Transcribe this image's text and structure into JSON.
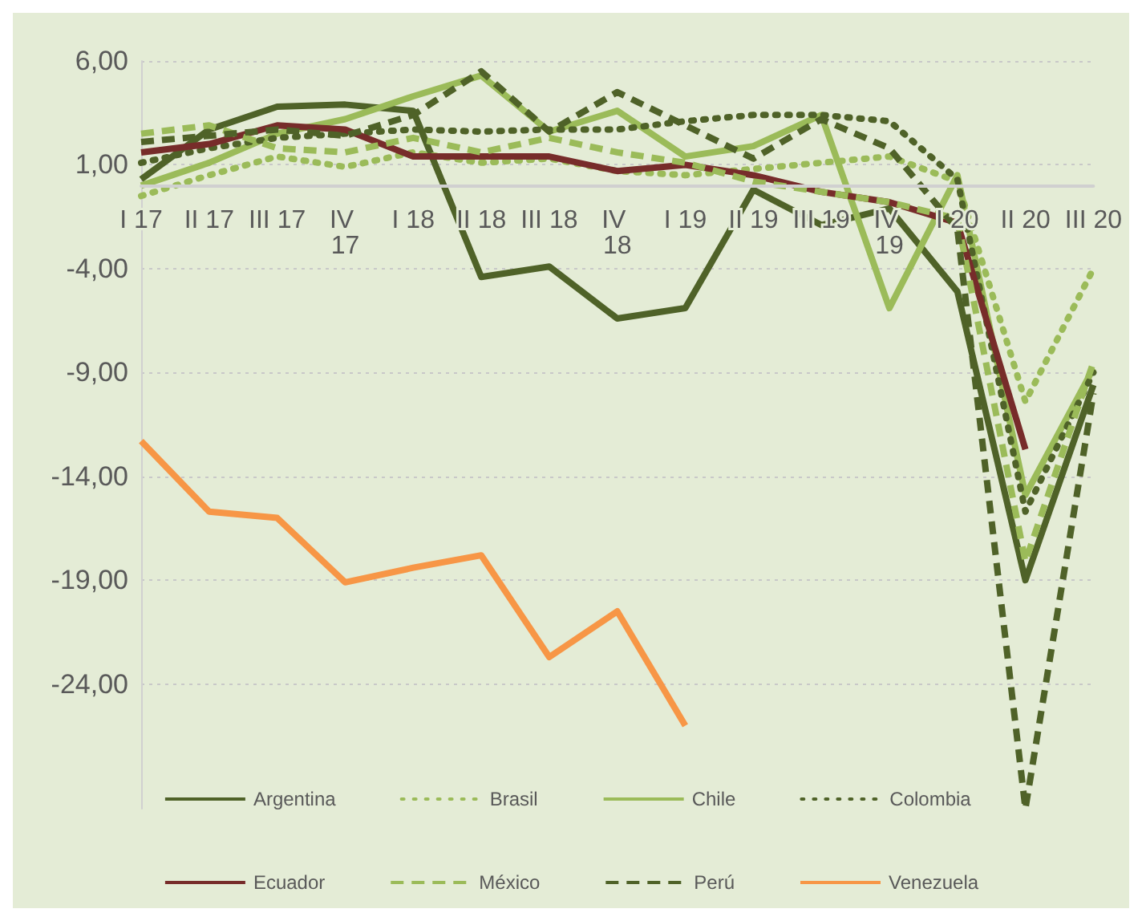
{
  "chart_data": {
    "type": "line",
    "categories": [
      "I 17",
      "II 17",
      "III 17",
      "IV 17",
      "I 18",
      "II 18",
      "III 18",
      "IV 18",
      "I 19",
      "II 19",
      "III 19",
      "IV 19",
      "I 20",
      "II 20",
      "III 20"
    ],
    "series": [
      {
        "name": "Argentina",
        "color": "#4f6228",
        "line_style": "solid",
        "values": [
          0.3,
          2.7,
          3.8,
          3.9,
          3.6,
          -4.4,
          -3.9,
          -6.4,
          -5.9,
          -0.2,
          -1.9,
          -1.1,
          -5.1,
          -19.0,
          -9.6
        ]
      },
      {
        "name": "Brasil",
        "color": "#9bbb59",
        "line_style": "dotted",
        "values": [
          -0.5,
          0.5,
          1.4,
          0.9,
          1.6,
          1.1,
          1.3,
          0.7,
          0.5,
          0.8,
          1.1,
          1.4,
          0.2,
          -10.4,
          -4.0
        ]
      },
      {
        "name": "Chile",
        "color": "#9bbb59",
        "line_style": "solid",
        "values": [
          0.0,
          1.1,
          2.5,
          3.2,
          4.3,
          5.3,
          2.6,
          3.6,
          1.4,
          1.9,
          3.4,
          -5.9,
          0.5,
          -14.9,
          -8.8
        ]
      },
      {
        "name": "Colombia",
        "color": "#4f6228",
        "line_style": "dotted",
        "values": [
          1.1,
          1.8,
          2.3,
          2.5,
          2.7,
          2.6,
          2.7,
          2.7,
          3.1,
          3.4,
          3.4,
          3.1,
          0.3,
          -15.7,
          -9.0
        ]
      },
      {
        "name": "Ecuador",
        "color": "#772c2a",
        "line_style": "solid",
        "values": [
          1.6,
          2.0,
          2.9,
          2.7,
          1.4,
          1.4,
          1.4,
          0.7,
          1.0,
          0.5,
          -0.3,
          -0.8,
          -1.8,
          -12.7,
          null
        ]
      },
      {
        "name": "México",
        "color": "#9bbb59",
        "line_style": "dashed",
        "values": [
          2.5,
          2.9,
          1.8,
          1.6,
          2.3,
          1.6,
          2.3,
          1.6,
          1.1,
          0.2,
          -0.3,
          -0.8,
          -1.6,
          -18.1,
          -8.5
        ]
      },
      {
        "name": "Perú",
        "color": "#4f6228",
        "line_style": "dashed",
        "values": [
          2.1,
          2.4,
          2.7,
          2.4,
          3.4,
          5.5,
          2.6,
          4.5,
          2.9,
          1.3,
          3.2,
          1.8,
          -2.1,
          -30.0,
          -10.0
        ]
      },
      {
        "name": "Venezuela",
        "color": "#f79646",
        "line_style": "solid",
        "values": [
          -12.3,
          -15.7,
          -16.0,
          -19.1,
          -18.4,
          -17.8,
          -22.7,
          -20.5,
          -26.0,
          null,
          null,
          null,
          null,
          null,
          null
        ]
      }
    ],
    "ylim": [
      -30,
      6
    ],
    "yticks": [
      {
        "value": -24,
        "label": "-24,00"
      },
      {
        "value": -19,
        "label": "-19,00"
      },
      {
        "value": -14,
        "label": "-14,00"
      },
      {
        "value": -9,
        "label": "-9,00"
      },
      {
        "value": -4,
        "label": "-4,00"
      },
      {
        "value": 1,
        "label": "1,00"
      },
      {
        "value": 6,
        "label": "6,00"
      }
    ],
    "grid": "y",
    "legend": "bottom",
    "marker": "none"
  }
}
